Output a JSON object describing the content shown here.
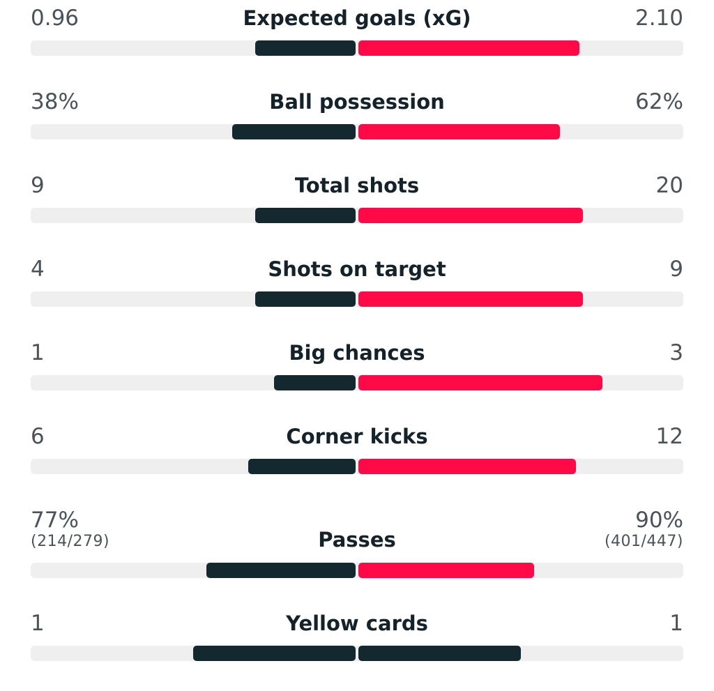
{
  "colors": {
    "home_bar": "#14282f",
    "away_bar": "#ff0a46",
    "track": "#efeff0",
    "label_text": "#14222a",
    "value_text": "#4b5358"
  },
  "stats": [
    {
      "label": "Expected goals (xG)",
      "home": "0.96",
      "away": "2.10",
      "home_fraction": 0.31,
      "away_fraction": 0.68,
      "away_color": "#ff0a46"
    },
    {
      "label": "Ball possession",
      "home": "38%",
      "away": "62%",
      "home_fraction": 0.38,
      "away_fraction": 0.62,
      "away_color": "#ff0a46"
    },
    {
      "label": "Total shots",
      "home": "9",
      "away": "20",
      "home_fraction": 0.31,
      "away_fraction": 0.69,
      "away_color": "#ff0a46"
    },
    {
      "label": "Shots on target",
      "home": "4",
      "away": "9",
      "home_fraction": 0.31,
      "away_fraction": 0.69,
      "away_color": "#ff0a46"
    },
    {
      "label": "Big chances",
      "home": "1",
      "away": "3",
      "home_fraction": 0.25,
      "away_fraction": 0.75,
      "away_color": "#ff0a46"
    },
    {
      "label": "Corner kicks",
      "home": "6",
      "away": "12",
      "home_fraction": 0.33,
      "away_fraction": 0.67,
      "away_color": "#ff0a46"
    },
    {
      "label": "Passes",
      "home": "77%",
      "away": "90%",
      "home_sub": "(214/279)",
      "away_sub": "(401/447)",
      "home_fraction": 0.46,
      "away_fraction": 0.54,
      "away_color": "#ff0a46"
    },
    {
      "label": "Yellow cards",
      "home": "1",
      "away": "1",
      "home_fraction": 0.5,
      "away_fraction": 0.5,
      "away_color": "#14282f"
    }
  ]
}
